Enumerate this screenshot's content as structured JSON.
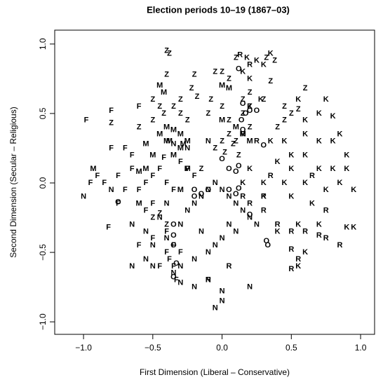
{
  "chart_data": {
    "type": "scatter",
    "title": "Election periods 10–19 (1867–03)",
    "xlabel": "First Dimension (Liberal – Conservative)",
    "ylabel": "Second Dimension (Secular – Religious)",
    "xlim": [
      -1.208,
      1.101
    ],
    "ylim": [
      -1.09,
      1.1
    ],
    "xticks": [
      {
        "value": -1,
        "label": "−1.0"
      },
      {
        "value": -0.5,
        "label": "−0.5"
      },
      {
        "value": 0,
        "label": "0.0"
      },
      {
        "value": 0.5,
        "label": "0.5"
      },
      {
        "value": 1,
        "label": "1.0"
      }
    ],
    "yticks": [
      {
        "value": -1,
        "label": "−1.0"
      },
      {
        "value": -0.5,
        "label": "−0.5"
      },
      {
        "value": 0,
        "label": "0.0"
      },
      {
        "value": 0.5,
        "label": "0.5"
      },
      {
        "value": 1,
        "label": "1.0"
      }
    ],
    "series": [
      {
        "name": "K",
        "color": "#0000ff",
        "x": [
          0.18,
          0.25,
          0.3,
          0.35,
          0.15,
          0.2,
          0.2,
          0.28,
          0.55,
          0.6,
          0.7,
          0.75,
          0.8,
          0.85,
          0.6,
          0.7,
          0.8,
          0.9,
          0.5,
          0.6,
          0.4,
          0.5,
          0.7,
          0.8,
          0.9,
          0.3,
          0.45,
          0.6,
          0.75,
          0.85,
          0.95,
          0.2,
          0.15,
          0.3,
          0.5,
          0.65,
          0.55,
          0.7,
          0.9,
          0.95,
          0.6,
          0.55,
          0.4,
          0.35,
          0.45
        ],
        "y": [
          0.9,
          0.88,
          0.85,
          0.93,
          0.8,
          0.75,
          0.55,
          0.6,
          0.6,
          0.45,
          0.5,
          0.6,
          0.48,
          0.35,
          0.35,
          0.3,
          0.3,
          0.2,
          0.2,
          0.2,
          0.15,
          0.1,
          0.1,
          0.1,
          0.1,
          0.0,
          0.0,
          0.0,
          -0.05,
          0.0,
          -0.05,
          0.1,
          0.0,
          -0.1,
          -0.1,
          -0.15,
          -0.3,
          -0.3,
          -0.32,
          -0.32,
          -0.5,
          -0.6,
          -0.35,
          0.3,
          0.3
        ]
      },
      {
        "name": "R",
        "color": "#bebebe",
        "x": [
          0.13,
          0.2,
          0.15,
          0.25,
          0.35,
          0.2,
          0.15,
          0.3,
          0.4,
          0.5,
          0.6,
          0.7,
          0.75,
          0.85,
          0.5,
          0.55,
          0.5,
          -0.1,
          0.05,
          0.65,
          0.75,
          0.3
        ],
        "y": [
          0.92,
          0.85,
          0.35,
          0.3,
          0.05,
          -0.15,
          -0.1,
          -0.2,
          -0.3,
          -0.35,
          -0.35,
          -0.38,
          -0.4,
          -0.45,
          -0.48,
          -0.55,
          -0.62,
          -0.7,
          -0.6,
          0.05,
          -0.2,
          -0.1
        ]
      },
      {
        "name": "Z",
        "color": "#ee0000",
        "x": [
          -0.4,
          -0.38,
          -0.4,
          -0.2,
          -0.05,
          0.0,
          0.05,
          -0.22,
          -0.18,
          -0.3,
          -0.5,
          -0.45,
          -0.35,
          -0.3,
          -0.42,
          -0.25,
          -0.08,
          0.0,
          -0.1,
          0.05,
          0.15,
          0.2,
          0.3,
          0.35,
          0.32,
          0.38,
          0.1,
          0.2,
          0.5,
          0.45,
          0.6,
          0.55,
          -0.8,
          -0.6,
          -0.5,
          0.05,
          0.0,
          0.1,
          0.02,
          0.12,
          -0.05,
          0.2,
          0.4,
          0.45,
          -0.45,
          -0.5,
          -0.4,
          0.08,
          -0.15,
          0.15
        ],
        "y": [
          0.95,
          0.93,
          0.78,
          0.78,
          0.8,
          0.8,
          0.75,
          0.68,
          0.62,
          0.6,
          0.6,
          0.55,
          0.55,
          0.5,
          0.5,
          0.45,
          0.6,
          0.55,
          0.5,
          0.45,
          0.5,
          0.55,
          0.6,
          0.73,
          0.9,
          0.88,
          0.9,
          0.65,
          0.5,
          0.45,
          0.68,
          0.53,
          0.43,
          0.4,
          0.45,
          0.35,
          0.3,
          0.3,
          0.22,
          0.2,
          0.25,
          0.4,
          0.4,
          0.55,
          -0.22,
          -0.25,
          -0.3,
          0.28,
          0.1,
          0.6
        ]
      },
      {
        "name": "M",
        "color": "#a52a2a",
        "x": [
          -0.55,
          -0.6,
          -0.93,
          -0.45,
          -0.42,
          -0.4,
          -0.45,
          -0.35,
          -0.3,
          -0.25,
          -0.3,
          -0.4,
          -0.5,
          -0.35,
          -0.6,
          -0.25,
          -0.3,
          0.0,
          0.1,
          0.15,
          0.2,
          0.0,
          0.05,
          -0.38,
          -0.28,
          -0.55
        ],
        "y": [
          0.1,
          0.08,
          0.1,
          0.7,
          0.65,
          0.4,
          0.35,
          0.38,
          0.35,
          0.3,
          0.25,
          0.3,
          0.2,
          0.2,
          -0.15,
          0.1,
          -0.05,
          0.45,
          0.4,
          0.35,
          0.3,
          0.7,
          0.68,
          0.3,
          0.28,
          0.28
        ]
      },
      {
        "name": "F",
        "color": "#ffff00",
        "x": [
          -0.98,
          -0.8,
          -0.6,
          -0.8,
          -0.7,
          -0.9,
          -0.95,
          -0.85,
          -0.75,
          -0.65,
          -0.7,
          -0.6,
          -0.55,
          -0.5,
          -0.45,
          -0.4,
          -0.35,
          -0.5,
          -0.55,
          -0.4,
          -0.35,
          -0.3,
          -0.4,
          -0.35,
          -0.33,
          -0.6,
          -0.5,
          -0.82,
          -0.42,
          -0.3,
          -0.25,
          -0.2,
          -0.65,
          -0.75,
          -0.45,
          -0.38
        ],
        "y": [
          0.45,
          0.52,
          0.55,
          0.25,
          0.25,
          0.05,
          0.0,
          0.0,
          0.05,
          0.1,
          -0.05,
          -0.05,
          0.0,
          0.05,
          0.1,
          0.0,
          -0.05,
          -0.15,
          -0.2,
          -0.35,
          -0.45,
          -0.5,
          -0.5,
          -0.6,
          -0.7,
          -0.45,
          -0.4,
          -0.32,
          0.18,
          0.15,
          0.1,
          0.05,
          0.2,
          -0.15,
          -0.6,
          -0.55
        ]
      },
      {
        "name": "N",
        "color": "#006400",
        "x": [
          -1.0,
          -0.8,
          -0.65,
          -0.55,
          -0.5,
          -0.65,
          -0.5,
          -0.55,
          -0.45,
          -0.4,
          -0.3,
          -0.25,
          -0.2,
          -0.15,
          -0.1,
          -0.05,
          0.0,
          0.05,
          0.1,
          0.15,
          0.2,
          0.25,
          -0.3,
          -0.35,
          -0.2,
          -0.1,
          -0.05,
          0.0,
          -0.1,
          -0.2,
          -0.3,
          0.0,
          0.0,
          -0.05,
          -0.35,
          -0.25,
          -0.1,
          0.05,
          0.1,
          0.2,
          -0.4,
          -0.15
        ],
        "y": [
          -0.1,
          -0.05,
          -0.3,
          -0.35,
          -0.45,
          -0.6,
          -0.6,
          -0.55,
          -0.25,
          -0.4,
          -0.3,
          -0.2,
          -0.15,
          -0.1,
          -0.05,
          0.0,
          -0.05,
          -0.1,
          -0.15,
          -0.2,
          -0.25,
          -0.3,
          -0.6,
          -0.65,
          -0.55,
          -0.5,
          -0.45,
          -0.4,
          -0.7,
          -0.75,
          -0.72,
          -0.78,
          -0.85,
          -0.9,
          0.28,
          0.25,
          0.3,
          -0.3,
          -0.35,
          -0.75,
          -0.15,
          -0.35
        ]
      },
      {
        "name": "O",
        "color": "#000000",
        "x": [
          0.12,
          0.15,
          0.17,
          0.2,
          0.25,
          0.14,
          0.15,
          0.3,
          0.0,
          0.12,
          0.05,
          0.1,
          -0.1,
          -0.15,
          -0.2,
          0.05,
          0.1,
          0.12,
          0.2,
          0.32,
          0.33,
          -0.75,
          -0.35,
          -0.35,
          -0.35,
          -0.33,
          -0.35,
          -0.2
        ],
        "y": [
          0.82,
          0.57,
          0.5,
          0.52,
          0.52,
          0.45,
          0.38,
          0.27,
          0.17,
          0.12,
          0.1,
          0.08,
          -0.05,
          -0.08,
          -0.1,
          -0.05,
          -0.08,
          -0.04,
          -0.23,
          -0.42,
          -0.45,
          -0.14,
          -0.3,
          -0.38,
          -0.45,
          -0.58,
          -0.68,
          -0.05
        ]
      }
    ]
  }
}
